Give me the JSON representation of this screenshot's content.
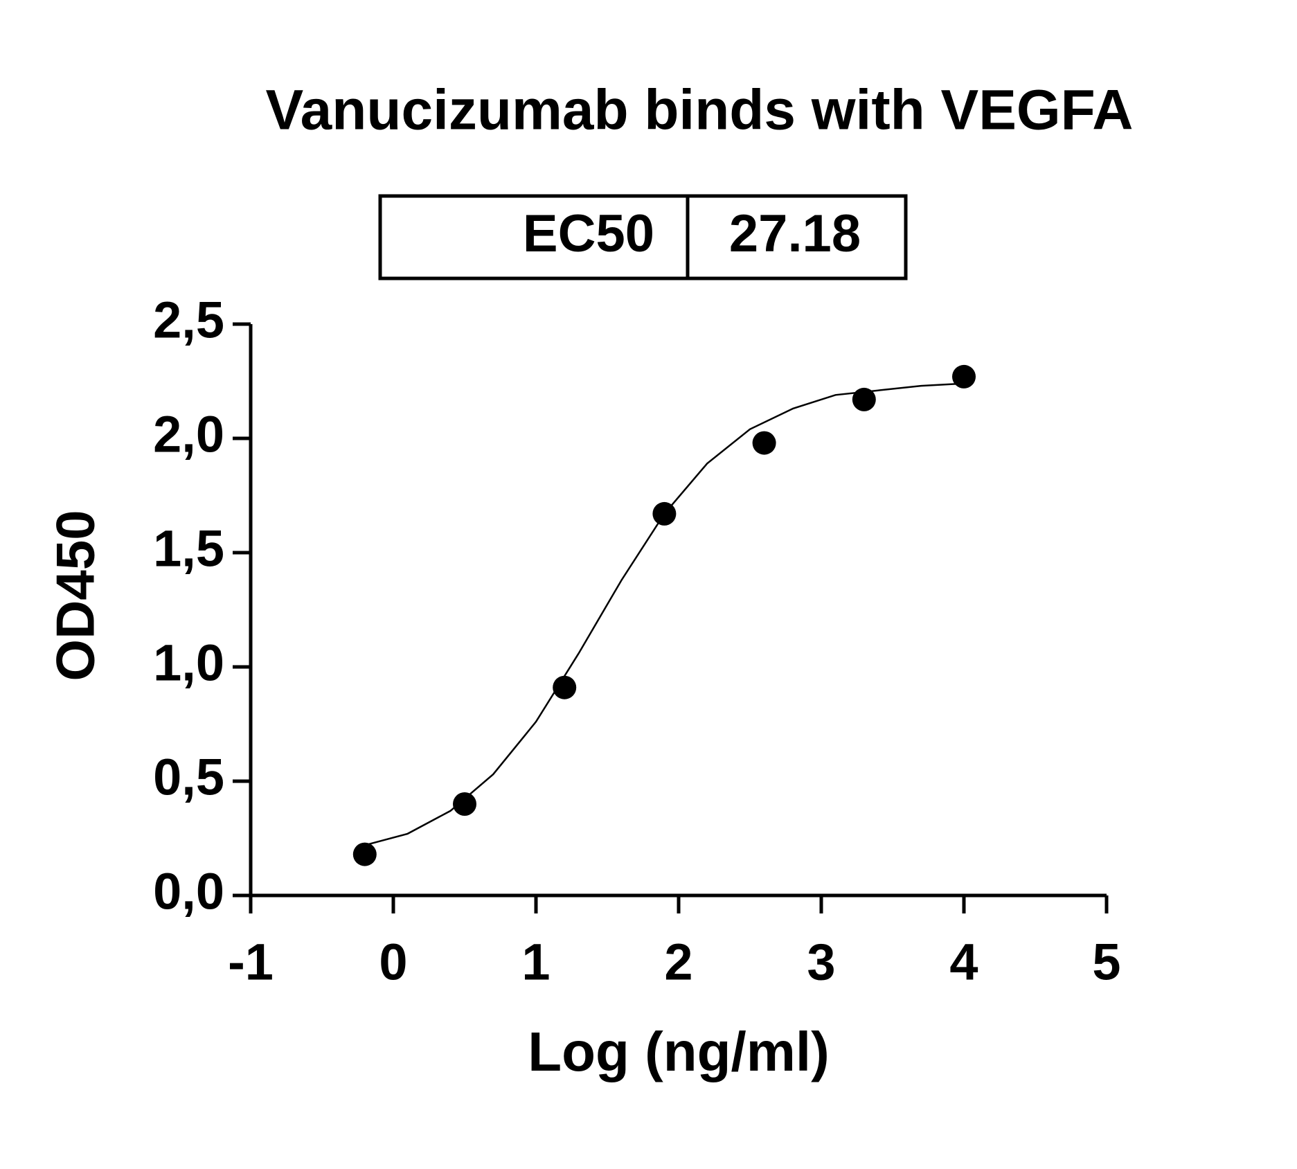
{
  "chart_data": {
    "type": "scatter",
    "title": "Vanucizumab binds with VEGFA",
    "table": {
      "label": "EC50",
      "value": 27.18
    },
    "x_label": "Log (ng/ml)",
    "y_label": "OD450",
    "x": [
      -0.2,
      0.5,
      1.2,
      1.9,
      2.6,
      3.3,
      4.0
    ],
    "values": [
      0.18,
      0.4,
      0.91,
      1.67,
      1.98,
      2.17,
      2.27
    ],
    "color": "#000000",
    "curve": {
      "x": [
        -0.2,
        0.1,
        0.4,
        0.7,
        1.0,
        1.3,
        1.6,
        1.9,
        2.2,
        2.5,
        2.8,
        3.1,
        3.4,
        3.7,
        4.0
      ],
      "values": [
        0.22,
        0.27,
        0.37,
        0.53,
        0.76,
        1.06,
        1.38,
        1.67,
        1.89,
        2.04,
        2.13,
        2.19,
        2.21,
        2.23,
        2.24
      ]
    },
    "xlim": [
      -1,
      5
    ],
    "xticks": [
      -1,
      0,
      1,
      2,
      3,
      4,
      5
    ],
    "ylim": [
      0,
      2.5
    ],
    "yticks": [
      {
        "value": 0,
        "label": "0,0"
      },
      {
        "value": 0.5,
        "label": "0,5"
      },
      {
        "value": 1,
        "label": "1,0"
      },
      {
        "value": 1.5,
        "label": "1,5"
      },
      {
        "value": 2,
        "label": "2,0"
      },
      {
        "value": 2.5,
        "label": "2,5"
      }
    ],
    "grid": false
  }
}
